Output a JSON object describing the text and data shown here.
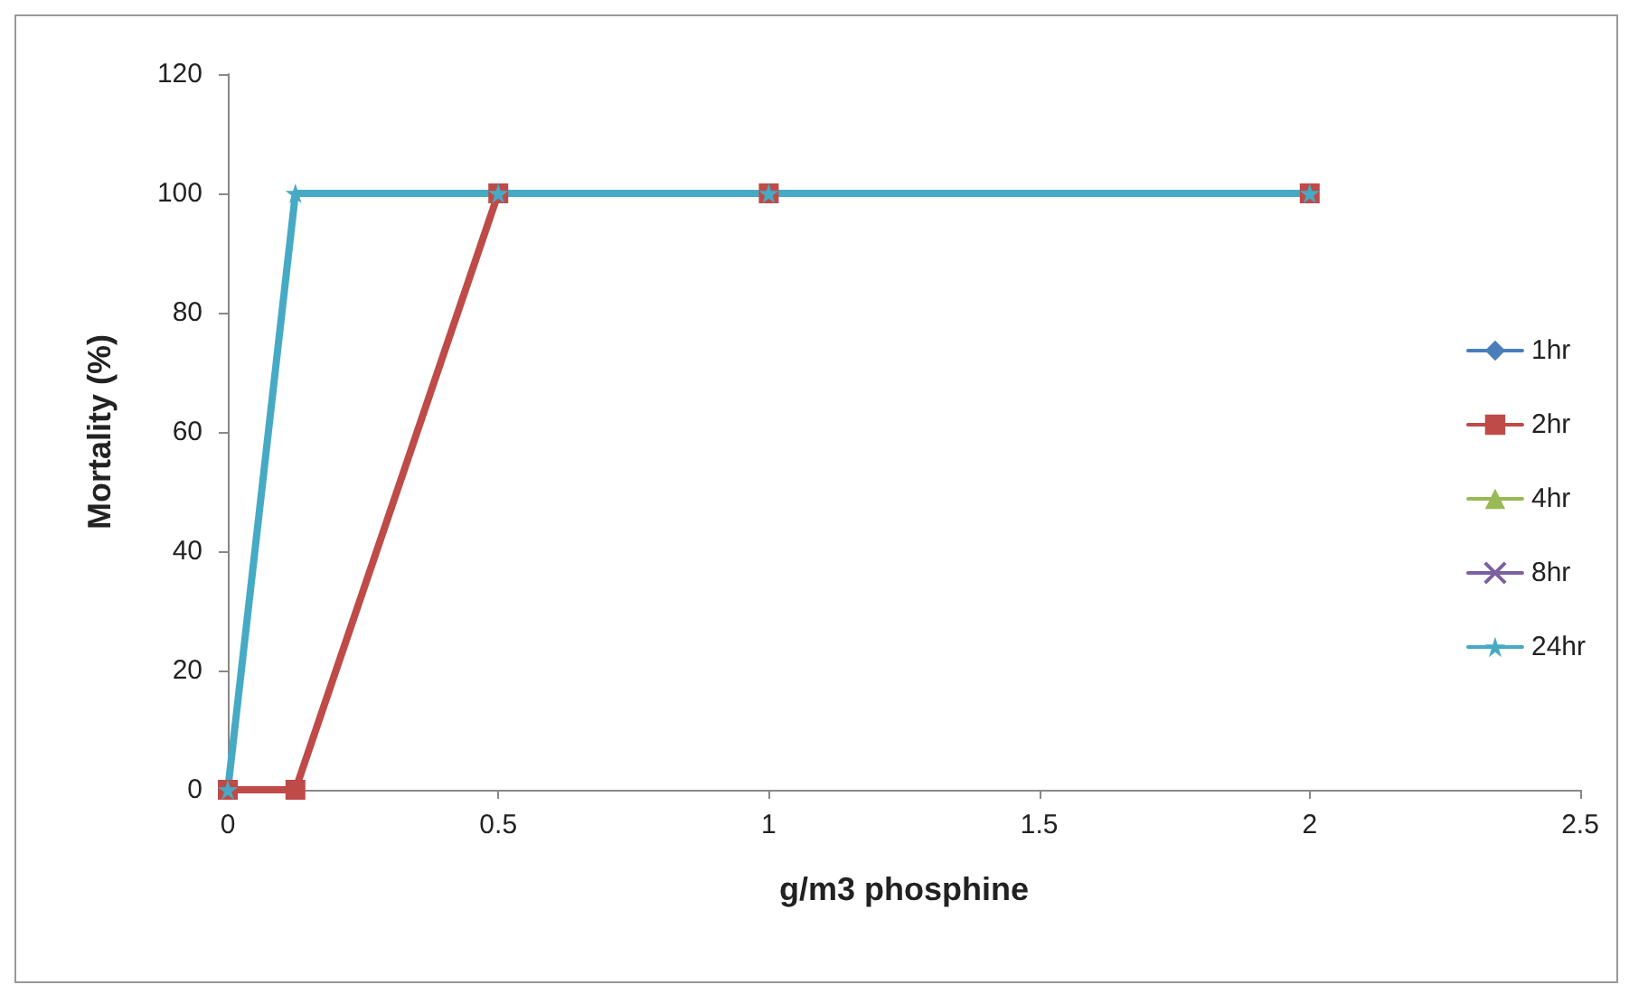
{
  "chart_data": {
    "type": "line",
    "xlabel": "g/m3 phosphine",
    "ylabel": "Mortality (%)",
    "x": [
      0,
      0.125,
      0.5,
      1,
      2
    ],
    "series": [
      {
        "name": "1hr",
        "color": "#4a7ebb",
        "values": [
          null,
          null,
          null,
          null,
          null
        ],
        "marker": "diamond"
      },
      {
        "name": "2hr",
        "color": "#be4b48",
        "values": [
          0,
          0,
          100,
          100,
          100
        ],
        "marker": "square"
      },
      {
        "name": "4hr",
        "color": "#98b954",
        "values": [
          null,
          null,
          null,
          null,
          null
        ],
        "marker": "triangle"
      },
      {
        "name": "8hr",
        "color": "#7d60a0",
        "values": [
          null,
          null,
          null,
          null,
          null
        ],
        "marker": "cross"
      },
      {
        "name": "24hr",
        "color": "#46aac5",
        "values": [
          0,
          100,
          100,
          100,
          100
        ],
        "marker": "star"
      }
    ],
    "xlim": [
      0,
      2.5
    ],
    "xticks": [
      0,
      0.5,
      1,
      1.5,
      2,
      2.5
    ],
    "ylim": [
      0,
      120
    ],
    "yticks": [
      0,
      20,
      40,
      60,
      80,
      100,
      120
    ],
    "grid": false,
    "legend": "right"
  }
}
